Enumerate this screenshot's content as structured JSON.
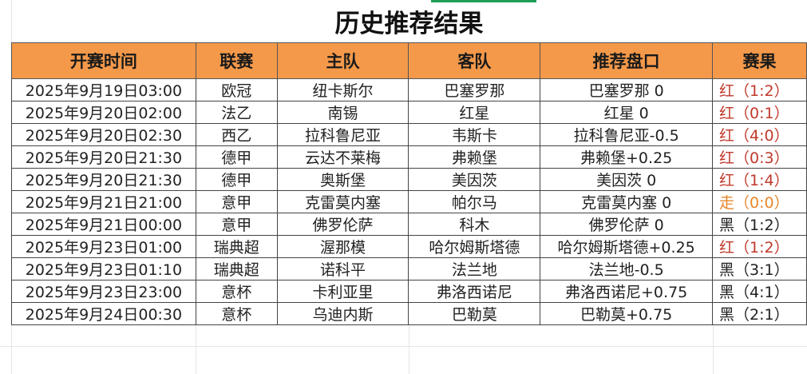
{
  "title": "历史推荐结果",
  "headers": [
    "开赛时间",
    "联赛",
    "主队",
    "客队",
    "推荐盘口",
    "赛果"
  ],
  "colors": {
    "header_bg": "#f4994a",
    "win": "#c0392b",
    "draw": "#e8862a",
    "lose": "#222222"
  },
  "rows": [
    {
      "time": "2025年9月19日03:00",
      "league": "欧冠",
      "home": "纽卡斯尔",
      "away": "巴塞罗那",
      "pick": "巴塞罗那 0",
      "result": "红（1:2）",
      "status": "win"
    },
    {
      "time": "2025年9月20日02:00",
      "league": "法乙",
      "home": "南锡",
      "away": "红星",
      "pick": "红星 0",
      "result": "红（0:1）",
      "status": "win"
    },
    {
      "time": "2025年9月20日02:30",
      "league": "西乙",
      "home": "拉科鲁尼亚",
      "away": "韦斯卡",
      "pick": "拉科鲁尼亚-0.5",
      "result": "红（4:0）",
      "status": "win"
    },
    {
      "time": "2025年9月20日21:30",
      "league": "德甲",
      "home": "云达不莱梅",
      "away": "弗赖堡",
      "pick": "弗赖堡+0.25",
      "result": "红（0:3）",
      "status": "win"
    },
    {
      "time": "2025年9月20日21:30",
      "league": "德甲",
      "home": "奥斯堡",
      "away": "美因茨",
      "pick": "美因茨 0",
      "result": "红（1:4）",
      "status": "win"
    },
    {
      "time": "2025年9月21日21:00",
      "league": "意甲",
      "home": "克雷莫内塞",
      "away": "帕尔马",
      "pick": "克雷莫内塞 0",
      "result": "走（0:0）",
      "status": "draw"
    },
    {
      "time": "2025年9月21日00:00",
      "league": "意甲",
      "home": "佛罗伦萨",
      "away": "科木",
      "pick": "佛罗伦萨 0",
      "result": "黑（1:2）",
      "status": "lose"
    },
    {
      "time": "2025年9月23日01:00",
      "league": "瑞典超",
      "home": "渥那模",
      "away": "哈尔姆斯塔德",
      "pick": "哈尔姆斯塔德+0.25",
      "result": "红（1:2）",
      "status": "win"
    },
    {
      "time": "2025年9月23日01:10",
      "league": "瑞典超",
      "home": "诺科平",
      "away": "法兰地",
      "pick": "法兰地-0.5",
      "result": "黑（3:1）",
      "status": "lose"
    },
    {
      "time": "2025年9月23日23:00",
      "league": "意杯",
      "home": "卡利亚里",
      "away": "弗洛西诺尼",
      "pick": "弗洛西诺尼+0.75",
      "result": "黑（4:1）",
      "status": "lose"
    },
    {
      "time": "2025年9月24日00:30",
      "league": "意杯",
      "home": "乌迪内斯",
      "away": "巴勒莫",
      "pick": "巴勒莫+0.75",
      "result": "黑（2:1）",
      "status": "lose"
    }
  ]
}
